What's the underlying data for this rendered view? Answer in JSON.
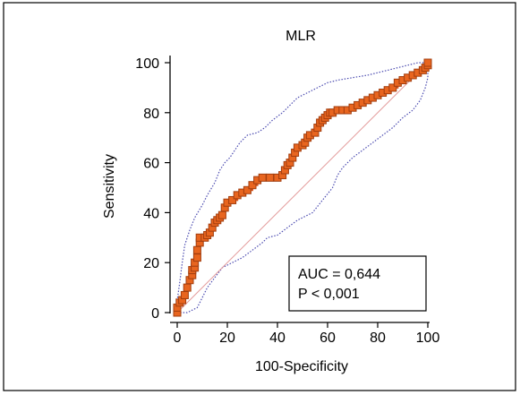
{
  "chart_data": {
    "type": "line",
    "title": "MLR",
    "xlabel": "100-Specificity",
    "ylabel": "Sensitivity",
    "xlim": [
      0,
      100
    ],
    "ylim": [
      0,
      100
    ],
    "x_ticks": [
      "0",
      "20",
      "40",
      "60",
      "80",
      "100"
    ],
    "y_ticks": [
      "0",
      "20",
      "40",
      "60",
      "80",
      "100"
    ],
    "grid": false,
    "legend": "none",
    "annotation": {
      "auc_text": "AUC = 0,644",
      "p_text": "P < 0,001",
      "placement": "bottom-right"
    },
    "series": [
      {
        "role": "roc-curve",
        "color": "#d9541e",
        "marker_fill": "#e8651f",
        "marker_edge": "#a23d0e",
        "points": [
          [
            0,
            0
          ],
          [
            0,
            2
          ],
          [
            1,
            4
          ],
          [
            2,
            5
          ],
          [
            3,
            7
          ],
          [
            4,
            10
          ],
          [
            5,
            13
          ],
          [
            6,
            15
          ],
          [
            6,
            17
          ],
          [
            7,
            18
          ],
          [
            7,
            20
          ],
          [
            8,
            22
          ],
          [
            8,
            25
          ],
          [
            9,
            28
          ],
          [
            9,
            30
          ],
          [
            11,
            30
          ],
          [
            12,
            31
          ],
          [
            13,
            32
          ],
          [
            14,
            34
          ],
          [
            15,
            36
          ],
          [
            16,
            37
          ],
          [
            17,
            38
          ],
          [
            18,
            39
          ],
          [
            19,
            42
          ],
          [
            20,
            44
          ],
          [
            22,
            45
          ],
          [
            24,
            47
          ],
          [
            26,
            48
          ],
          [
            28,
            49
          ],
          [
            30,
            51
          ],
          [
            32,
            53
          ],
          [
            34,
            54
          ],
          [
            37,
            54
          ],
          [
            40,
            54
          ],
          [
            42,
            55
          ],
          [
            43,
            57
          ],
          [
            44,
            59
          ],
          [
            45,
            60
          ],
          [
            46,
            62
          ],
          [
            47,
            64
          ],
          [
            48,
            66
          ],
          [
            50,
            67
          ],
          [
            51,
            68
          ],
          [
            52,
            70
          ],
          [
            53,
            71
          ],
          [
            55,
            72
          ],
          [
            56,
            74
          ],
          [
            57,
            76
          ],
          [
            58,
            77
          ],
          [
            59,
            78
          ],
          [
            60,
            79
          ],
          [
            61,
            80
          ],
          [
            62,
            80
          ],
          [
            64,
            81
          ],
          [
            66,
            81
          ],
          [
            68,
            81
          ],
          [
            70,
            82
          ],
          [
            72,
            83
          ],
          [
            74,
            84
          ],
          [
            76,
            85
          ],
          [
            78,
            86
          ],
          [
            80,
            87
          ],
          [
            82,
            88
          ],
          [
            84,
            89
          ],
          [
            86,
            90
          ],
          [
            88,
            92
          ],
          [
            90,
            93
          ],
          [
            92,
            94
          ],
          [
            94,
            95
          ],
          [
            96,
            96
          ],
          [
            98,
            97
          ],
          [
            99,
            98
          ],
          [
            100,
            99
          ],
          [
            100,
            100
          ]
        ]
      },
      {
        "role": "upper-confidence-band",
        "color": "#4b4bb0",
        "points": [
          [
            0,
            0
          ],
          [
            0,
            5
          ],
          [
            1,
            12
          ],
          [
            2,
            20
          ],
          [
            3,
            27
          ],
          [
            5,
            33
          ],
          [
            7,
            38
          ],
          [
            10,
            43
          ],
          [
            12,
            47
          ],
          [
            15,
            52
          ],
          [
            17,
            57
          ],
          [
            19,
            60
          ],
          [
            21,
            62
          ],
          [
            23,
            65
          ],
          [
            25,
            68
          ],
          [
            28,
            71
          ],
          [
            32,
            72
          ],
          [
            35,
            74
          ],
          [
            38,
            77
          ],
          [
            42,
            80
          ],
          [
            45,
            83
          ],
          [
            48,
            86
          ],
          [
            52,
            88
          ],
          [
            56,
            90
          ],
          [
            60,
            92
          ],
          [
            64,
            93
          ],
          [
            70,
            94
          ],
          [
            76,
            95
          ],
          [
            84,
            97
          ],
          [
            92,
            99
          ],
          [
            96,
            100
          ],
          [
            100,
            100
          ]
        ]
      },
      {
        "role": "lower-confidence-band",
        "color": "#4b4bb0",
        "points": [
          [
            0,
            0
          ],
          [
            4,
            0
          ],
          [
            8,
            2
          ],
          [
            10,
            6
          ],
          [
            12,
            10
          ],
          [
            15,
            14
          ],
          [
            18,
            18
          ],
          [
            22,
            20
          ],
          [
            26,
            22
          ],
          [
            30,
            25
          ],
          [
            34,
            28
          ],
          [
            36,
            30
          ],
          [
            40,
            31
          ],
          [
            44,
            34
          ],
          [
            48,
            37
          ],
          [
            50,
            38
          ],
          [
            54,
            40
          ],
          [
            58,
            45
          ],
          [
            62,
            50
          ],
          [
            64,
            55
          ],
          [
            66,
            58
          ],
          [
            70,
            62
          ],
          [
            74,
            65
          ],
          [
            78,
            68
          ],
          [
            82,
            71
          ],
          [
            86,
            74
          ],
          [
            90,
            78
          ],
          [
            94,
            81
          ],
          [
            97,
            85
          ],
          [
            99,
            90
          ],
          [
            100,
            94
          ],
          [
            100,
            100
          ]
        ]
      },
      {
        "role": "reference-diagonal",
        "color": "#e39a9a",
        "points": [
          [
            0,
            0
          ],
          [
            100,
            100
          ]
        ]
      }
    ]
  }
}
